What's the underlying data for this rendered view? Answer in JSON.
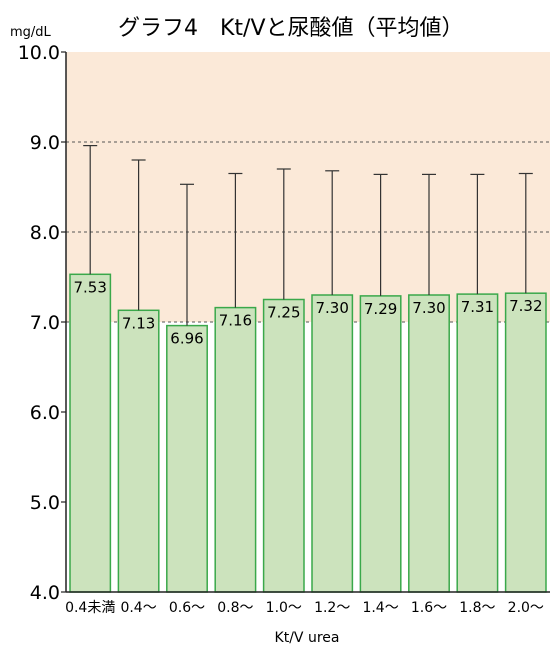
{
  "chart_data": {
    "type": "bar",
    "title": "グラフ4　Kt/Vと尿酸値（平均値）",
    "unit_label": "mg/dL",
    "xlabel": "Kt/V urea",
    "ylabel": "",
    "ylim": [
      4.0,
      10.0
    ],
    "yticks": [
      "4.0",
      "5.0",
      "6.0",
      "7.0",
      "8.0",
      "9.0",
      "10.0"
    ],
    "categories": [
      "0.4未満",
      "0.4～",
      "0.6～",
      "0.8～",
      "1.0～",
      "1.2～",
      "1.4～",
      "1.6～",
      "1.8～",
      "2.0～"
    ],
    "values": [
      7.53,
      7.13,
      6.96,
      7.16,
      7.25,
      7.3,
      7.29,
      7.3,
      7.31,
      7.32
    ],
    "value_labels": [
      "7.53",
      "7.13",
      "6.96",
      "7.16",
      "7.25",
      "7.30",
      "7.29",
      "7.30",
      "7.31",
      "7.32"
    ],
    "error_upper": [
      8.96,
      8.8,
      8.53,
      8.65,
      8.7,
      8.68,
      8.64,
      8.64,
      8.64,
      8.65
    ],
    "grid": "dashed horizontal at 7.0, 8.0, 9.0",
    "colors": {
      "background": "#fbe9d8",
      "bar_fill": "#cce3bd",
      "bar_stroke": "#3aa84a",
      "error_bar": "#333333",
      "axis": "#222222"
    }
  }
}
